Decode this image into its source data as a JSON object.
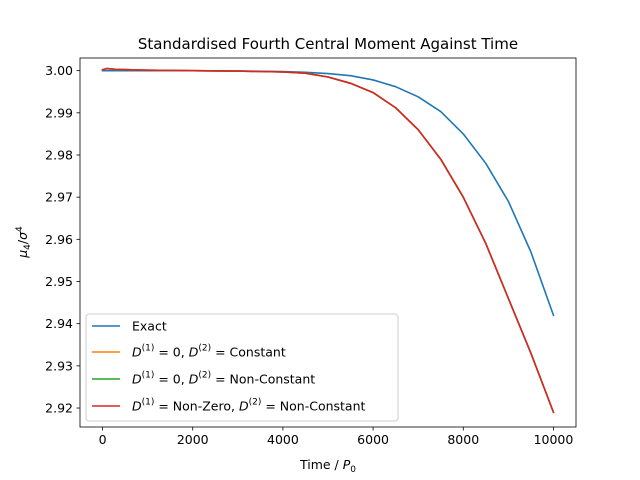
{
  "chart_data": {
    "type": "line",
    "title": "Standardised Fourth Central Moment Against Time",
    "xlabel": {
      "main": "Time / ",
      "sym": "P",
      "sub": "0"
    },
    "ylabel": {
      "mu": "μ",
      "mu_sub": "4",
      "slash": "/",
      "sigma": "σ",
      "sigma_sup": "4"
    },
    "xlim": [
      -500,
      10500
    ],
    "ylim": [
      2.9155,
      3.003
    ],
    "xticks": [
      0,
      2000,
      4000,
      6000,
      8000,
      10000
    ],
    "xtick_labels": [
      "0",
      "2000",
      "4000",
      "6000",
      "8000",
      "10000"
    ],
    "yticks": [
      2.92,
      2.93,
      2.94,
      2.95,
      2.96,
      2.97,
      2.98,
      2.99,
      3.0
    ],
    "ytick_labels": [
      "2.92",
      "2.93",
      "2.94",
      "2.95",
      "2.96",
      "2.97",
      "2.98",
      "2.99",
      "3.00"
    ],
    "legend_position": "lower-left",
    "series": [
      {
        "name": "Exact",
        "legend": [
          {
            "t": "Exact"
          }
        ],
        "color": "#1f77b4",
        "x": [
          0,
          1000,
          2000,
          3000,
          4000,
          4500,
          5000,
          5500,
          6000,
          6500,
          7000,
          7500,
          8000,
          8500,
          9000,
          9500,
          10000
        ],
        "y": [
          3.0,
          3.0,
          3.0,
          2.9999,
          2.9998,
          2.9996,
          2.9993,
          2.9988,
          2.9978,
          2.9962,
          2.9938,
          2.9903,
          2.985,
          2.978,
          2.969,
          2.957,
          2.942
        ]
      },
      {
        "name": "D(1)=0, D(2)= Constant",
        "legend": [
          {
            "t": "D"
          },
          {
            "sup": "(1)"
          },
          {
            "t": " = 0, "
          },
          {
            "t": "D"
          },
          {
            "sup": "(2)"
          },
          {
            "t": " =  Constant"
          }
        ],
        "color": "#ff7f0e",
        "x": [
          0,
          100,
          300,
          1000,
          2000,
          3000,
          4000,
          4500,
          5000,
          5500,
          6000,
          6500,
          7000,
          7500,
          8000,
          8500,
          9000,
          9500,
          10000
        ],
        "y": [
          3.0002,
          3.0005,
          3.0003,
          3.0001,
          3.0,
          2.9999,
          2.9997,
          2.9994,
          2.9985,
          2.997,
          2.9948,
          2.9912,
          2.986,
          2.979,
          2.97,
          2.959,
          2.946,
          2.933,
          2.919
        ]
      },
      {
        "name": "D(1)=0, D(2)= Non-Constant",
        "legend": [
          {
            "t": "D"
          },
          {
            "sup": "(1)"
          },
          {
            "t": " = 0, "
          },
          {
            "t": "D"
          },
          {
            "sup": "(2)"
          },
          {
            "t": " =  Non-Constant"
          }
        ],
        "color": "#2ca02c",
        "x": [
          0,
          100,
          300,
          1000,
          2000,
          3000,
          4000,
          4500,
          5000,
          5500,
          6000,
          6500,
          7000,
          7500,
          8000,
          8500,
          9000,
          9500,
          10000
        ],
        "y": [
          3.0002,
          3.0005,
          3.0003,
          3.0001,
          3.0,
          2.9999,
          2.9997,
          2.9994,
          2.9985,
          2.997,
          2.9948,
          2.9912,
          2.986,
          2.979,
          2.97,
          2.959,
          2.946,
          2.933,
          2.919
        ]
      },
      {
        "name": "D(1)=Non-Zero, D(2)= Non-Constant",
        "legend": [
          {
            "t": "D"
          },
          {
            "sup": "(1)"
          },
          {
            "t": " = Non-Zero, "
          },
          {
            "t": "D"
          },
          {
            "sup": "(2)"
          },
          {
            "t": " =  Non-Constant"
          }
        ],
        "color": "#d62728",
        "x": [
          0,
          100,
          300,
          1000,
          2000,
          3000,
          4000,
          4500,
          5000,
          5500,
          6000,
          6500,
          7000,
          7500,
          8000,
          8500,
          9000,
          9500,
          10000
        ],
        "y": [
          3.0002,
          3.0005,
          3.0003,
          3.0001,
          3.0,
          2.9999,
          2.9997,
          2.9994,
          2.9985,
          2.997,
          2.9948,
          2.9912,
          2.986,
          2.979,
          2.97,
          2.959,
          2.946,
          2.933,
          2.919
        ]
      }
    ]
  }
}
